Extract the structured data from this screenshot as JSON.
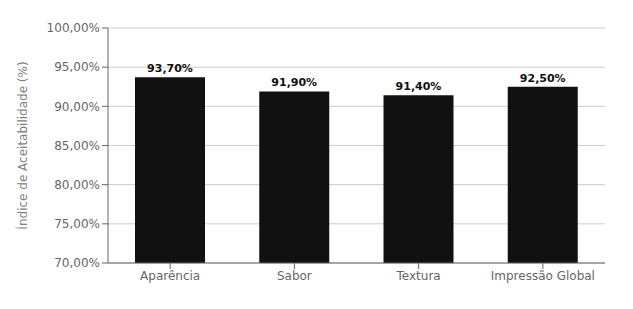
{
  "chart_data": {
    "type": "bar",
    "categories": [
      "Aparência",
      "Sabor",
      "Textura",
      "Impressão Global"
    ],
    "values": [
      93.7,
      91.9,
      91.4,
      92.5
    ],
    "value_labels": [
      "93,70%",
      "91,90%",
      "91,40%",
      "92,50%"
    ],
    "color": "#111111",
    "ylabel": "Índice de Aceitabilidade (%)",
    "ylim": [
      70.0,
      100.0
    ],
    "yticks": [
      {
        "value": 70.0,
        "label": "70,00%"
      },
      {
        "value": 75.0,
        "label": "75,00%"
      },
      {
        "value": 80.0,
        "label": "80,00%"
      },
      {
        "value": 85.0,
        "label": "85,00%"
      },
      {
        "value": 90.0,
        "label": "90,00%"
      },
      {
        "value": 95.0,
        "label": "95,00%"
      },
      {
        "value": 100.0,
        "label": "100,00%"
      }
    ],
    "grid": true,
    "data_labels": true
  }
}
